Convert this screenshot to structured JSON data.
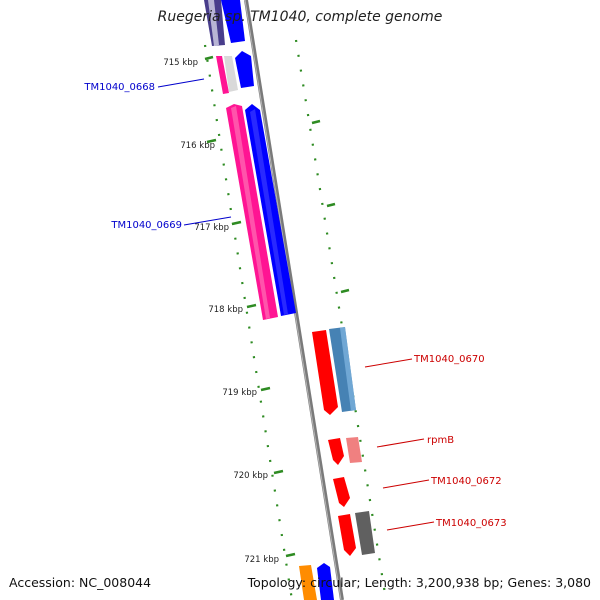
{
  "title": "Ruegeria sp. TM1040, complete genome",
  "footer": {
    "accession": "Accession: NC_008044",
    "topology": "Topology: circular; Length: 3,200,938 bp; Genes: 3,080"
  },
  "ticks": [
    {
      "label": "715 kbp"
    },
    {
      "label": "716 kbp"
    },
    {
      "label": "717 kbp"
    },
    {
      "label": "718 kbp"
    },
    {
      "label": "719 kbp"
    },
    {
      "label": "720 kbp"
    },
    {
      "label": "721 kbp"
    }
  ],
  "gene_labels": [
    {
      "name": "TM1040_0668",
      "color": "#0000cc"
    },
    {
      "name": "TM1040_0669",
      "color": "#0000cc"
    },
    {
      "name": "TM1040_0670",
      "color": "#cc0000"
    },
    {
      "name": "rpmB",
      "color": "#cc0000"
    },
    {
      "name": "TM1040_0672",
      "color": "#cc0000"
    },
    {
      "name": "TM1040_0673",
      "color": "#cc0000"
    }
  ],
  "colors": {
    "backbone": "#808080",
    "tick_green": "#2e8b22",
    "blue": "#0000ff",
    "magenta": "#ff1493",
    "red": "#ff0000",
    "steel_blue": "#4682b4",
    "pink": "#f08080",
    "gray": "#606060",
    "slate": "#483d8b",
    "orange": "#ff8c00"
  }
}
